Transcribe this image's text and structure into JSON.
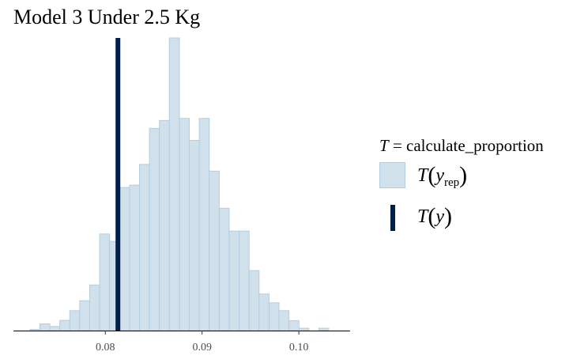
{
  "chart_data": {
    "type": "histogram",
    "title": "Model 3 Under 2.5 Kg",
    "xlim": [
      0.0705,
      0.1053
    ],
    "ylim": [
      0,
      1
    ],
    "x_ticks": [
      "0.08",
      "0.09",
      "0.10"
    ],
    "x_tick_values": [
      0.08,
      0.09,
      0.1
    ],
    "bin_width": 0.00103,
    "bins_start": 0.0722,
    "counts": [
      0.004,
      0.023,
      0.014,
      0.035,
      0.068,
      0.102,
      0.156,
      0.33,
      0.305,
      0.489,
      0.497,
      0.568,
      0.691,
      0.718,
      1.0,
      0.725,
      0.65,
      0.725,
      0.545,
      0.418,
      0.34,
      0.34,
      0.205,
      0.125,
      0.095,
      0.068,
      0.034,
      0.008,
      0.0,
      0.008
    ],
    "observed_value": 0.0813,
    "colors": {
      "rep_fill": "#d1e1ec",
      "rep_edge": "#b3cde0",
      "observed": "#011f4b"
    },
    "legend": {
      "title_symbol": "T",
      "title_rest": " = calculate_proportion",
      "items": [
        {
          "symbol": "T",
          "arg": "y",
          "sub": "rep"
        },
        {
          "symbol": "T",
          "arg": "y",
          "sub": ""
        }
      ]
    },
    "grid": false,
    "legend_position": "right"
  }
}
